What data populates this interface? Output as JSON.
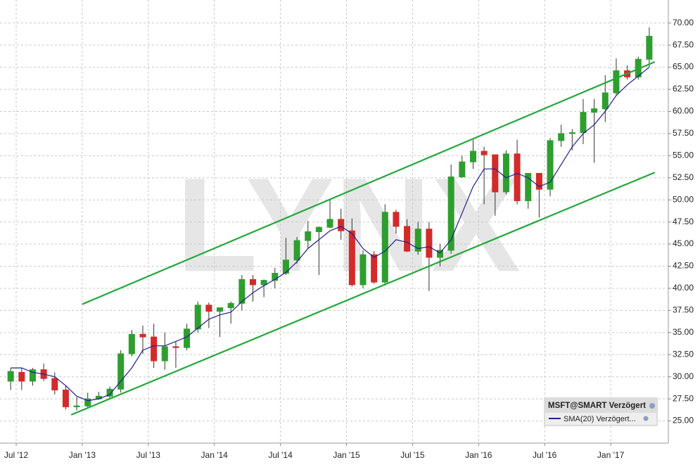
{
  "chart_data": {
    "type": "candlestick",
    "name": "MSFT@SMART Verzögert",
    "watermark": "LYNX",
    "up_color": "#2e9e2e",
    "down_color": "#d42a2a",
    "grid": true,
    "x": [
      "2012-06",
      "2012-07",
      "2012-08",
      "2012-09",
      "2012-10",
      "2012-11",
      "2012-12",
      "2013-01",
      "2013-02",
      "2013-03",
      "2013-04",
      "2013-05",
      "2013-06",
      "2013-07",
      "2013-08",
      "2013-09",
      "2013-10",
      "2013-11",
      "2013-12",
      "2014-01",
      "2014-02",
      "2014-03",
      "2014-04",
      "2014-05",
      "2014-06",
      "2014-07",
      "2014-08",
      "2014-09",
      "2014-10",
      "2014-11",
      "2014-12",
      "2015-01",
      "2015-02",
      "2015-03",
      "2015-04",
      "2015-05",
      "2015-06",
      "2015-07",
      "2015-08",
      "2015-09",
      "2015-10",
      "2015-11",
      "2015-12",
      "2016-01",
      "2016-02",
      "2016-03",
      "2016-04",
      "2016-05",
      "2016-06",
      "2016-07",
      "2016-08",
      "2016-09",
      "2016-10",
      "2016-11",
      "2016-12",
      "2017-01",
      "2017-02",
      "2017-03",
      "2017-04"
    ],
    "open": [
      29.5,
      30.5,
      29.5,
      30.8,
      29.8,
      28.5,
      26.6,
      26.7,
      27.5,
      27.8,
      28.6,
      32.6,
      34.8,
      34.5,
      31.8,
      33.4,
      33.3,
      35.4,
      38.1,
      37.4,
      37.8,
      38.3,
      41.0,
      40.4,
      40.9,
      41.7,
      43.2,
      45.4,
      46.4,
      46.9,
      47.8,
      46.5,
      40.4,
      43.8,
      40.7,
      48.6,
      47.0,
      44.2,
      46.7,
      43.5,
      44.3,
      52.6,
      54.3,
      55.5,
      55.1,
      50.9,
      55.2,
      49.9,
      53.0,
      51.2,
      56.7,
      57.5,
      57.6,
      59.9,
      60.3,
      62.1,
      64.6,
      63.9,
      65.9
    ],
    "high": [
      31.0,
      31.0,
      31.0,
      31.5,
      30.5,
      29.0,
      27.7,
      28.2,
      28.3,
      28.9,
      33.0,
      35.3,
      35.8,
      36.0,
      35.0,
      34.0,
      36.0,
      38.5,
      38.4,
      37.8,
      38.5,
      41.5,
      41.5,
      41.0,
      42.3,
      45.7,
      45.8,
      47.6,
      47.0,
      50.0,
      49.0,
      47.9,
      44.3,
      44.2,
      49.5,
      48.9,
      47.8,
      47.5,
      47.5,
      45.0,
      54.0,
      55.0,
      56.8,
      56.0,
      55.1,
      55.6,
      56.8,
      53.0,
      53.0,
      57.0,
      58.5,
      58.0,
      61.4,
      61.4,
      64.1,
      66.0,
      65.2,
      66.2,
      69.5
    ],
    "low": [
      28.5,
      28.5,
      29.0,
      29.5,
      28.0,
      26.3,
      26.2,
      26.5,
      27.4,
      27.6,
      28.2,
      32.3,
      32.6,
      31.0,
      30.8,
      31.0,
      33.0,
      35.0,
      35.5,
      34.5,
      36.0,
      37.5,
      38.5,
      39.0,
      40.0,
      41.5,
      42.8,
      44.5,
      41.5,
      46.8,
      45.5,
      40.2,
      40.0,
      40.5,
      40.3,
      46.2,
      44.1,
      43.8,
      39.7,
      42.5,
      43.9,
      52.5,
      53.5,
      49.5,
      48.2,
      50.6,
      49.5,
      49.0,
      48.0,
      50.4,
      56.0,
      55.6,
      56.3,
      54.2,
      58.8,
      61.9,
      63.6,
      63.6,
      65.0
    ],
    "close": [
      30.6,
      29.5,
      30.8,
      29.8,
      28.5,
      26.6,
      26.7,
      27.5,
      27.8,
      28.6,
      32.6,
      34.8,
      34.5,
      31.8,
      33.4,
      33.3,
      35.4,
      38.1,
      37.4,
      37.8,
      38.3,
      41.0,
      40.4,
      40.9,
      41.7,
      43.2,
      45.4,
      46.4,
      46.9,
      47.8,
      46.5,
      40.4,
      43.8,
      40.7,
      48.6,
      47.0,
      44.2,
      46.7,
      43.5,
      44.3,
      52.6,
      54.3,
      55.5,
      55.1,
      50.9,
      55.2,
      49.9,
      53.0,
      51.2,
      56.7,
      57.5,
      57.6,
      59.9,
      60.3,
      62.1,
      64.6,
      63.9,
      65.9,
      68.5
    ],
    "overlays": [
      {
        "name": "SMA(20) Verzögert...",
        "color": "#1f1f8f",
        "values": [
          31,
          31,
          30.5,
          30.3,
          30,
          29,
          27.8,
          27.3,
          27.5,
          28,
          29.5,
          31,
          33,
          33.5,
          33.5,
          34,
          34.5,
          35.5,
          36.5,
          37,
          37.3,
          38.5,
          39.5,
          40.3,
          41,
          41.8,
          43,
          44.5,
          45.5,
          46.5,
          47,
          46.2,
          44.5,
          43.5,
          44.2,
          45.5,
          45.2,
          44.5,
          44.7,
          44,
          45.5,
          48.5,
          51.5,
          53.5,
          53.5,
          52.5,
          53,
          52.5,
          51.5,
          52,
          54,
          56,
          57.5,
          58.5,
          60,
          61.8,
          63,
          64,
          65
        ]
      }
    ],
    "trendlines": [
      {
        "color": "#22a83a",
        "x": [
          "2013-01",
          "2017-05"
        ],
        "values": [
          38.2,
          65.6
        ]
      },
      {
        "color": "#22a83a",
        "x": [
          "2012-12",
          "2017-05"
        ],
        "values": [
          25.7,
          53.1
        ]
      }
    ],
    "ylim": [
      22.5,
      72.6
    ],
    "yticks": [
      {
        "value": 25,
        "label": "25.00"
      },
      {
        "value": 27.5,
        "label": "27.50"
      },
      {
        "value": 30,
        "label": "30.00"
      },
      {
        "value": 32.5,
        "label": "32.50"
      },
      {
        "value": 35,
        "label": "35.00"
      },
      {
        "value": 37.5,
        "label": "37.50"
      },
      {
        "value": 40,
        "label": "40.00"
      },
      {
        "value": 42.5,
        "label": "42.50"
      },
      {
        "value": 45,
        "label": "45.00"
      },
      {
        "value": 47.5,
        "label": "47.50"
      },
      {
        "value": 50,
        "label": "50.00"
      },
      {
        "value": 52.5,
        "label": "52.50"
      },
      {
        "value": 55,
        "label": "55.00"
      },
      {
        "value": 57.5,
        "label": "57.50"
      },
      {
        "value": 60,
        "label": "60.00"
      },
      {
        "value": 62.5,
        "label": "62.50"
      },
      {
        "value": 65,
        "label": "65.00"
      },
      {
        "value": 67.5,
        "label": "67.50"
      },
      {
        "value": 70,
        "label": "70.00"
      }
    ],
    "xticks": [
      {
        "value": "2012-07",
        "label": "Jul '12"
      },
      {
        "value": "2013-01",
        "label": "Jan '13"
      },
      {
        "value": "2013-07",
        "label": "Jul '13"
      },
      {
        "value": "2014-01",
        "label": "Jan '14"
      },
      {
        "value": "2014-07",
        "label": "Jul '14"
      },
      {
        "value": "2015-01",
        "label": "Jan '15"
      },
      {
        "value": "2015-07",
        "label": "Jul '15"
      },
      {
        "value": "2016-01",
        "label": "Jan '16"
      },
      {
        "value": "2016-07",
        "label": "Jul '16"
      },
      {
        "value": "2017-01",
        "label": "Jan '17"
      }
    ]
  }
}
